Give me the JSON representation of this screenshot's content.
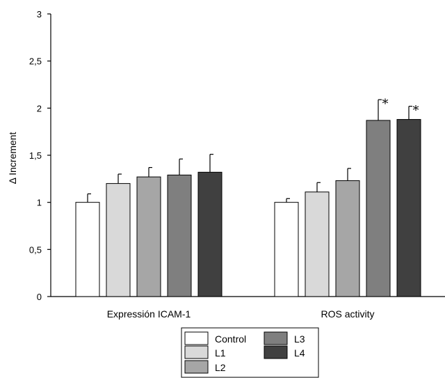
{
  "chart_data": {
    "type": "bar",
    "title": "",
    "xlabel": "",
    "ylabel": "Δ Increment",
    "ylim": [
      0,
      3
    ],
    "yticks": [
      {
        "value": 0,
        "label": "0"
      },
      {
        "value": 0.5,
        "label": "0,5"
      },
      {
        "value": 1,
        "label": "1"
      },
      {
        "value": 1.5,
        "label": "1,5"
      },
      {
        "value": 2,
        "label": "2"
      },
      {
        "value": 2.5,
        "label": "2,5"
      },
      {
        "value": 3,
        "label": "3"
      }
    ],
    "grid": false,
    "legend_position": "bottom-center",
    "categories": [
      "Expressión ICAM-1",
      "ROS activity"
    ],
    "series": [
      {
        "name": "Control",
        "color": "#ffffff",
        "values": [
          1.0,
          1.0
        ],
        "errors": [
          0.09,
          0.04
        ],
        "significant": [
          false,
          false
        ]
      },
      {
        "name": "L1",
        "color": "#d9d9d9",
        "values": [
          1.2,
          1.11
        ],
        "errors": [
          0.1,
          0.1
        ],
        "significant": [
          false,
          false
        ]
      },
      {
        "name": "L2",
        "color": "#a6a6a6",
        "values": [
          1.27,
          1.23
        ],
        "errors": [
          0.1,
          0.13
        ],
        "significant": [
          false,
          false
        ]
      },
      {
        "name": "L3",
        "color": "#7f7f7f",
        "values": [
          1.29,
          1.87
        ],
        "errors": [
          0.17,
          0.22
        ],
        "significant": [
          false,
          true
        ]
      },
      {
        "name": "L4",
        "color": "#404040",
        "values": [
          1.32,
          1.88
        ],
        "errors": [
          0.19,
          0.14
        ],
        "significant": [
          false,
          true
        ]
      }
    ],
    "significance_marker": "*"
  }
}
